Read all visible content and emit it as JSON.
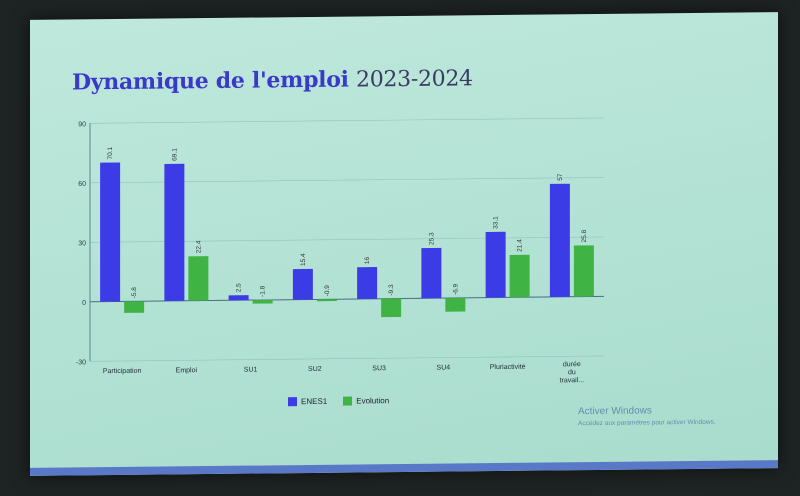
{
  "title": {
    "part1": "Dynamique de l'emploi",
    "year": "2023-2024"
  },
  "colors": {
    "enes1": "#3b3ce6",
    "evolution": "#3fb344"
  },
  "chart_data": {
    "type": "bar",
    "title": "Dynamique de l'emploi 2023-2024",
    "xlabel": "",
    "ylabel": "",
    "categories": [
      "Participation",
      "Emploi",
      "SU1",
      "SU2",
      "SU3",
      "SU4",
      "Pluriactivité",
      "durée du travail..."
    ],
    "series": [
      {
        "name": "ENES1",
        "values": [
          70.1,
          69.1,
          2.5,
          15.4,
          16,
          25.3,
          33.1,
          57
        ],
        "labels": [
          "70.1",
          "69.1",
          "2.5",
          "15.4",
          "16",
          "25.3",
          "33.1",
          "57"
        ]
      },
      {
        "name": "Evolution",
        "values": [
          -5.8,
          22.4,
          -1.8,
          -0.9,
          -9.3,
          -6.9,
          21.4,
          25.8
        ],
        "labels": [
          "-5.8",
          "22.4",
          "-1.8",
          "-0.9",
          "-9.3",
          "-6.9",
          "21.4",
          "25.8"
        ]
      }
    ],
    "ylim": [
      -30,
      90
    ],
    "yticks": [
      "90",
      "60",
      "30",
      "0",
      "-30"
    ],
    "grid": true,
    "legend": "bottom"
  },
  "watermark": {
    "title": "Activer Windows",
    "subtitle": "Accédez aux paramètres pour activer Windows."
  }
}
